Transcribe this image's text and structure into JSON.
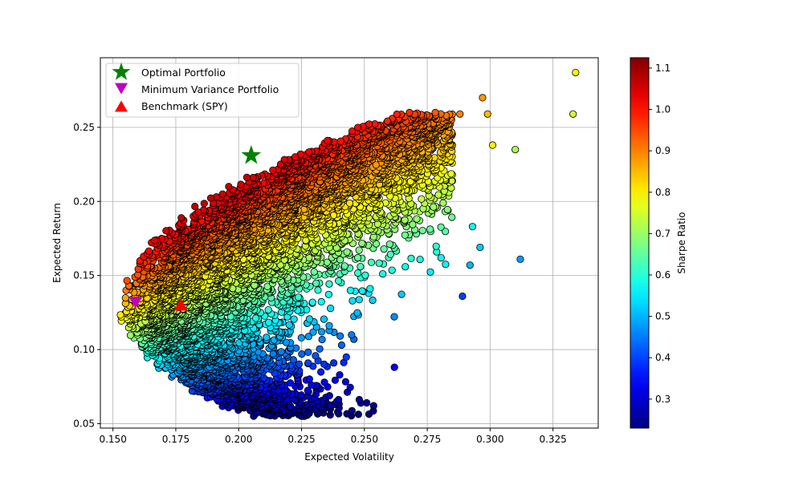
{
  "chart_data": {
    "type": "scatter",
    "xlabel": "Expected Volatility",
    "ylabel": "Expected Return",
    "xlim": [
      0.145,
      0.343
    ],
    "ylim": [
      0.047,
      0.297
    ],
    "x_ticks": [
      "0.150",
      "0.175",
      "0.200",
      "0.225",
      "0.250",
      "0.275",
      "0.300",
      "0.325"
    ],
    "y_ticks": [
      "0.05",
      "0.10",
      "0.15",
      "0.20",
      "0.25"
    ],
    "grid": true,
    "legend_position": "top-left",
    "colormap": "jet",
    "colorbar": {
      "label": "Sharpe Ratio",
      "range": [
        0.23,
        1.125
      ],
      "ticks": [
        "0.3",
        "0.4",
        "0.5",
        "0.6",
        "0.7",
        "0.8",
        "0.9",
        "1.0",
        "1.1"
      ]
    },
    "series": [
      {
        "name": "Optimal Portfolio",
        "marker": "star",
        "color": "#008000",
        "x": 0.205,
        "y": 0.231
      },
      {
        "name": "Minimum Variance Portfolio",
        "marker": "triangle-down",
        "color": "#bf00bf",
        "x": 0.159,
        "y": 0.132
      },
      {
        "name": "Benchmark (SPY)",
        "marker": "triangle-up",
        "color": "#ff0000",
        "x": 0.177,
        "y": 0.13
      }
    ],
    "outlier_points": [
      {
        "x": 0.334,
        "y": 0.287,
        "sharpe": 0.8
      },
      {
        "x": 0.333,
        "y": 0.259,
        "sharpe": 0.75
      },
      {
        "x": 0.31,
        "y": 0.235,
        "sharpe": 0.72
      },
      {
        "x": 0.312,
        "y": 0.161,
        "sharpe": 0.48
      },
      {
        "x": 0.297,
        "y": 0.27,
        "sharpe": 0.88
      },
      {
        "x": 0.299,
        "y": 0.259,
        "sharpe": 0.85
      },
      {
        "x": 0.296,
        "y": 0.169,
        "sharpe": 0.52
      },
      {
        "x": 0.289,
        "y": 0.136,
        "sharpe": 0.4
      },
      {
        "x": 0.293,
        "y": 0.183,
        "sharpe": 0.58
      },
      {
        "x": 0.301,
        "y": 0.238,
        "sharpe": 0.8
      },
      {
        "x": 0.288,
        "y": 0.259,
        "sharpe": 0.9
      },
      {
        "x": 0.292,
        "y": 0.157,
        "sharpe": 0.5
      }
    ]
  }
}
